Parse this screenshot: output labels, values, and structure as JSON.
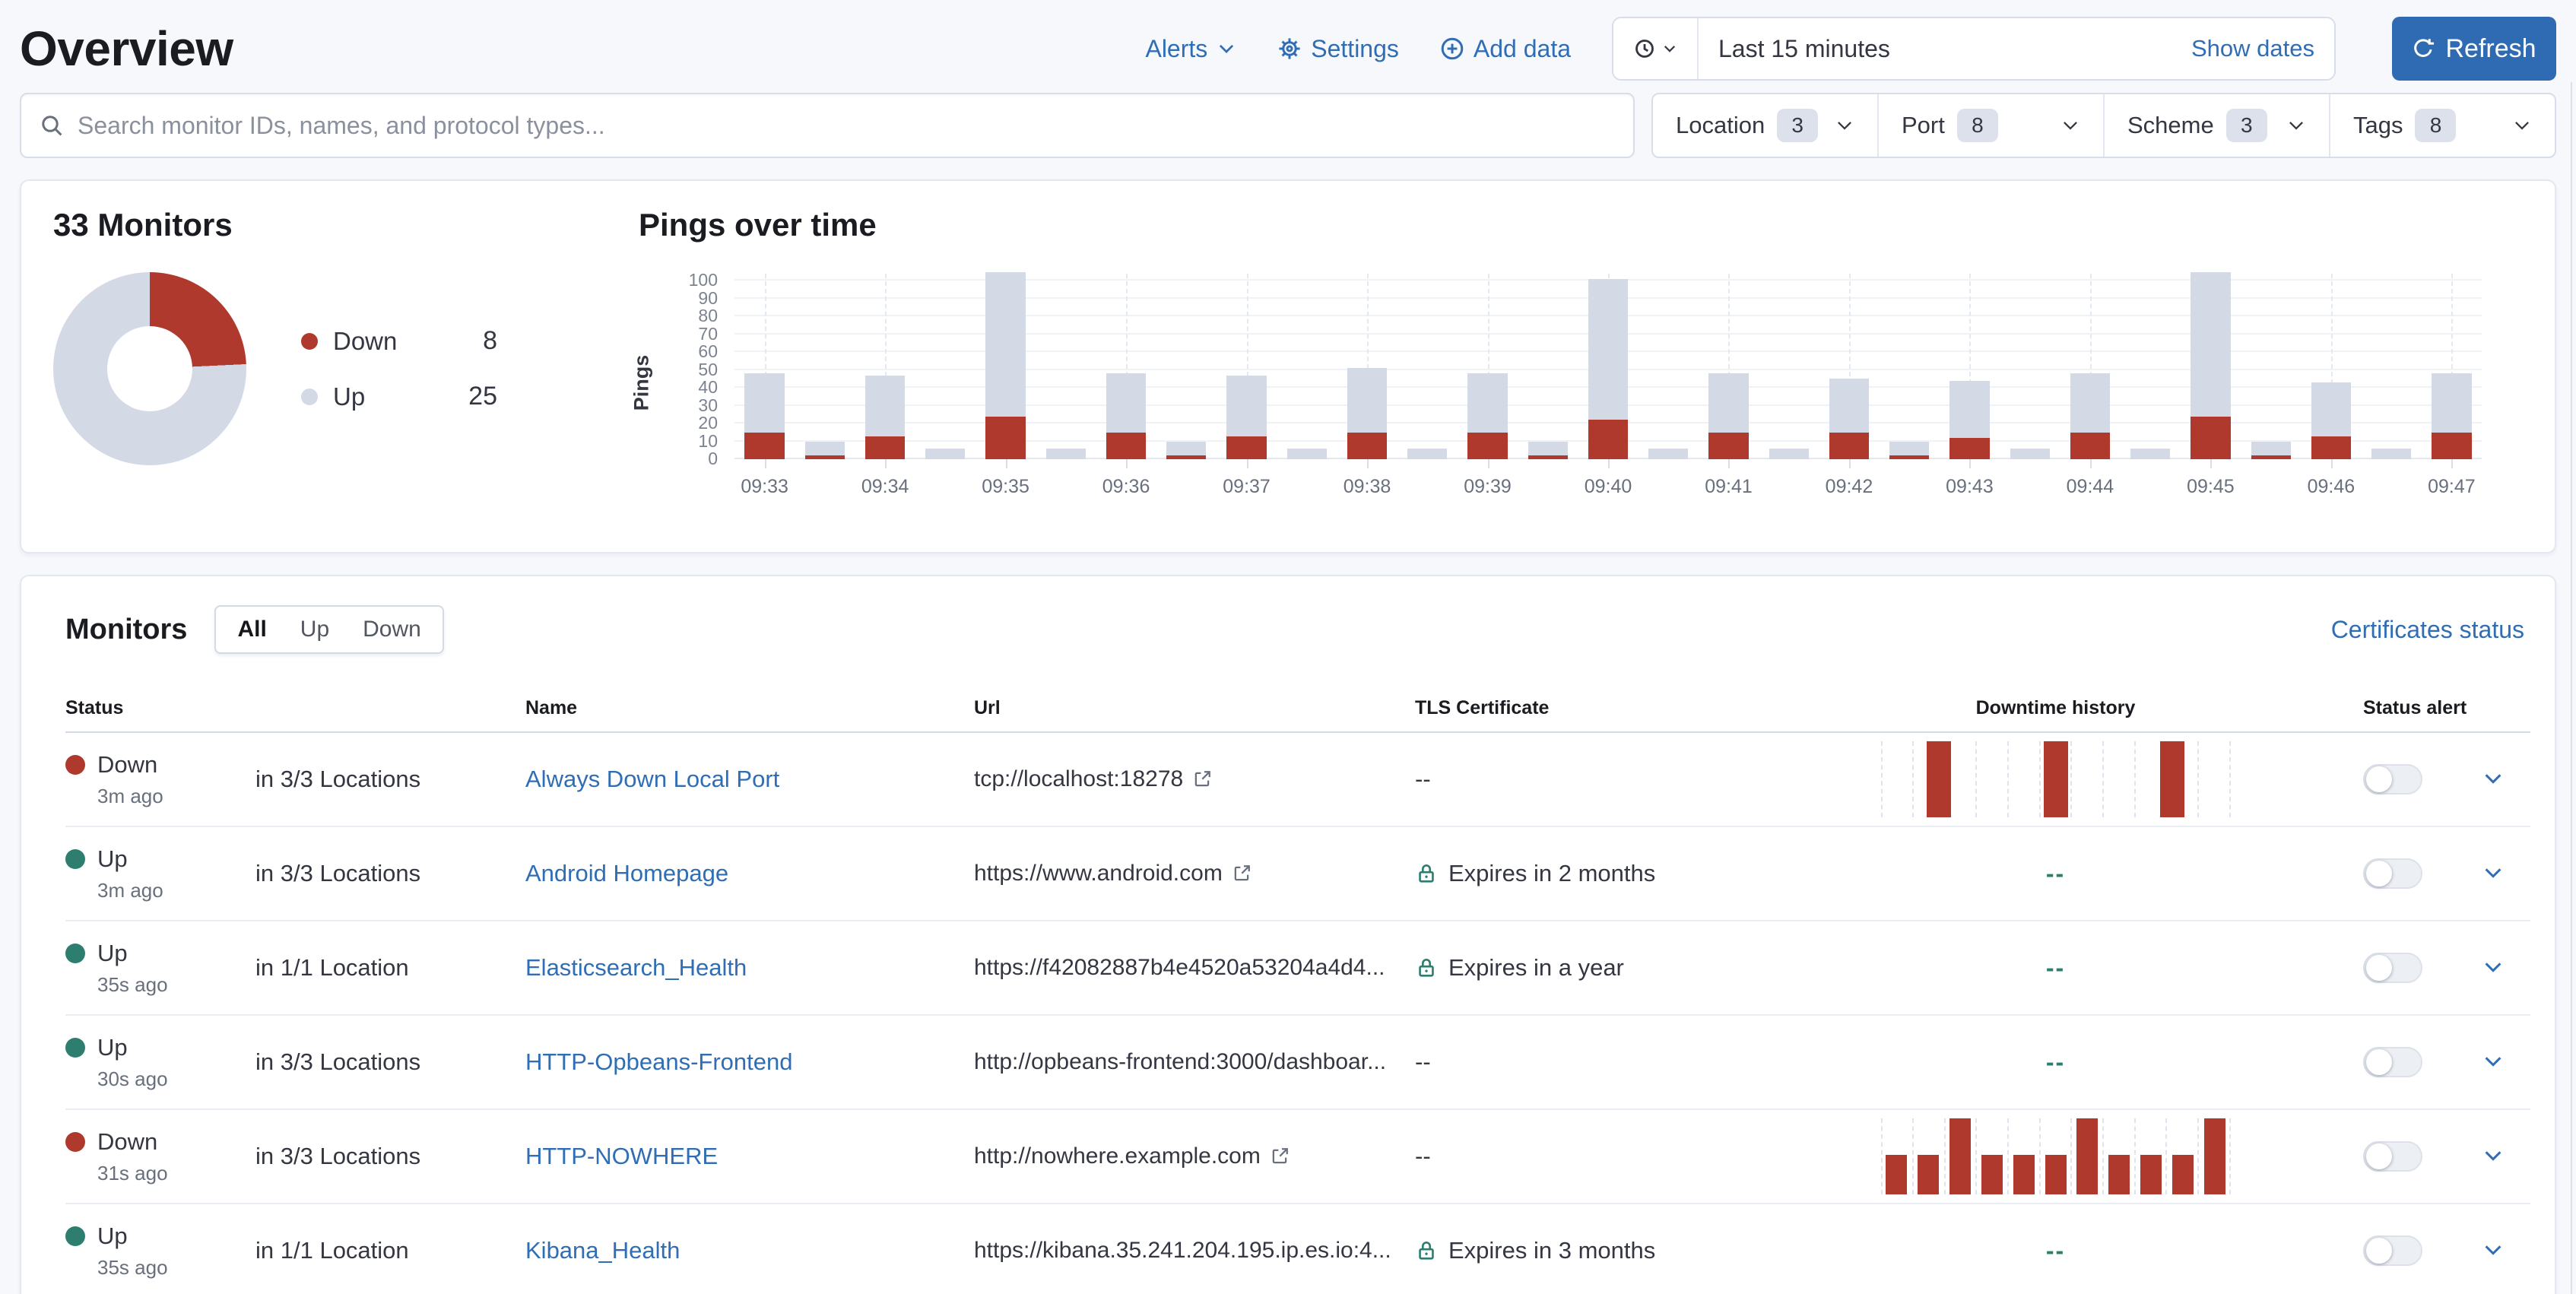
{
  "header": {
    "title": "Overview",
    "alerts_label": "Alerts",
    "settings_label": "Settings",
    "add_data_label": "Add data",
    "time_range": "Last 15 minutes",
    "show_dates_label": "Show dates",
    "refresh_label": "Refresh"
  },
  "search": {
    "placeholder": "Search monitor IDs, names, and protocol types..."
  },
  "filters": [
    {
      "label": "Location",
      "count": "3"
    },
    {
      "label": "Port",
      "count": "8"
    },
    {
      "label": "Scheme",
      "count": "3"
    },
    {
      "label": "Tags",
      "count": "8"
    }
  ],
  "snapshot": {
    "title": "33 Monitors",
    "legend": [
      {
        "label": "Down",
        "value": 8,
        "color": "#b0392e"
      },
      {
        "label": "Up",
        "value": 25,
        "color": "#d3dae6"
      }
    ]
  },
  "chart_data": {
    "type": "bar",
    "title": "Pings over time",
    "ylabel": "Pings",
    "xlabel": "",
    "ylim": [
      0,
      100
    ],
    "grid": true,
    "stacked": true,
    "yticks": [
      0,
      10,
      20,
      30,
      40,
      50,
      60,
      70,
      80,
      90,
      100
    ],
    "x_labels": [
      "09:33",
      "09:34",
      "09:35",
      "09:36",
      "09:37",
      "09:38",
      "09:39",
      "09:40",
      "09:41",
      "09:42",
      "09:43",
      "09:44",
      "09:45",
      "09:46",
      "09:47"
    ],
    "series_names": [
      "Down (red)",
      "Up (gray)"
    ],
    "buckets": [
      {
        "down": 15,
        "up": 33
      },
      {
        "down": 2,
        "up": 8
      },
      {
        "down": 13,
        "up": 34
      },
      {
        "down": 0,
        "up": 6
      },
      {
        "down": 24,
        "up": 81
      },
      {
        "down": 0,
        "up": 6
      },
      {
        "down": 15,
        "up": 33
      },
      {
        "down": 2,
        "up": 8
      },
      {
        "down": 13,
        "up": 34
      },
      {
        "down": 0,
        "up": 6
      },
      {
        "down": 15,
        "up": 36
      },
      {
        "down": 0,
        "up": 6
      },
      {
        "down": 15,
        "up": 33
      },
      {
        "down": 2,
        "up": 8
      },
      {
        "down": 22,
        "up": 79
      },
      {
        "down": 0,
        "up": 6
      },
      {
        "down": 15,
        "up": 33
      },
      {
        "down": 0,
        "up": 6
      },
      {
        "down": 15,
        "up": 30
      },
      {
        "down": 2,
        "up": 8
      },
      {
        "down": 12,
        "up": 32
      },
      {
        "down": 0,
        "up": 6
      },
      {
        "down": 15,
        "up": 33
      },
      {
        "down": 0,
        "up": 6
      },
      {
        "down": 24,
        "up": 81
      },
      {
        "down": 2,
        "up": 8
      },
      {
        "down": 13,
        "up": 30
      },
      {
        "down": 0,
        "up": 6
      },
      {
        "down": 15,
        "up": 33
      }
    ]
  },
  "monitors": {
    "title": "Monitors",
    "tabs": [
      "All",
      "Up",
      "Down"
    ],
    "active_tab": "All",
    "certificates_link": "Certificates status",
    "columns": {
      "status": "Status",
      "name": "Name",
      "url": "Url",
      "tls": "TLS Certificate",
      "downtime": "Downtime history",
      "alert": "Status alert"
    },
    "empty_downtime": "--",
    "empty_tls": "--",
    "rows": [
      {
        "status": "Down",
        "ago": "3m ago",
        "locations": "in 3/3 Locations",
        "name": "Always Down Local Port",
        "url": "tcp://localhost:18278",
        "tls": "--",
        "downtime": {
          "type": "bars",
          "values": [
            100,
            100,
            100
          ]
        }
      },
      {
        "status": "Up",
        "ago": "3m ago",
        "locations": "in 3/3 Locations",
        "name": "Android Homepage",
        "url": "https://www.android.com",
        "tls": "Expires in 2 months",
        "downtime": {
          "type": "empty",
          "text": "--"
        }
      },
      {
        "status": "Up",
        "ago": "35s ago",
        "locations": "in 1/1 Location",
        "name": "Elasticsearch_Health",
        "url": "https://f42082887b4e4520a53204a4d4...",
        "tls": "Expires in a year",
        "downtime": {
          "type": "empty",
          "text": "--"
        }
      },
      {
        "status": "Up",
        "ago": "30s ago",
        "locations": "in 3/3 Locations",
        "name": "HTTP-Opbeans-Frontend",
        "url": "http://opbeans-frontend:3000/dashboar...",
        "tls": "--",
        "downtime": {
          "type": "empty",
          "text": "--"
        }
      },
      {
        "status": "Down",
        "ago": "31s ago",
        "locations": "in 3/3 Locations",
        "name": "HTTP-NOWHERE",
        "url": "http://nowhere.example.com",
        "tls": "--",
        "downtime": {
          "type": "bars",
          "values": [
            52,
            52,
            100,
            52,
            52,
            52,
            100,
            52,
            52,
            52,
            100
          ]
        }
      },
      {
        "status": "Up",
        "ago": "35s ago",
        "locations": "in 1/1 Location",
        "name": "Kibana_Health",
        "url": "https://kibana.35.241.204.195.ip.es.io:4...",
        "tls": "Expires in 3 months",
        "downtime": {
          "type": "empty",
          "text": "--"
        }
      }
    ]
  },
  "colors": {
    "accent_blue": "#2f6db5",
    "button_blue": "#2e6bb2",
    "danger_red": "#b0392e",
    "success_green": "#2e7e70",
    "bar_gray": "#d3dae6"
  }
}
